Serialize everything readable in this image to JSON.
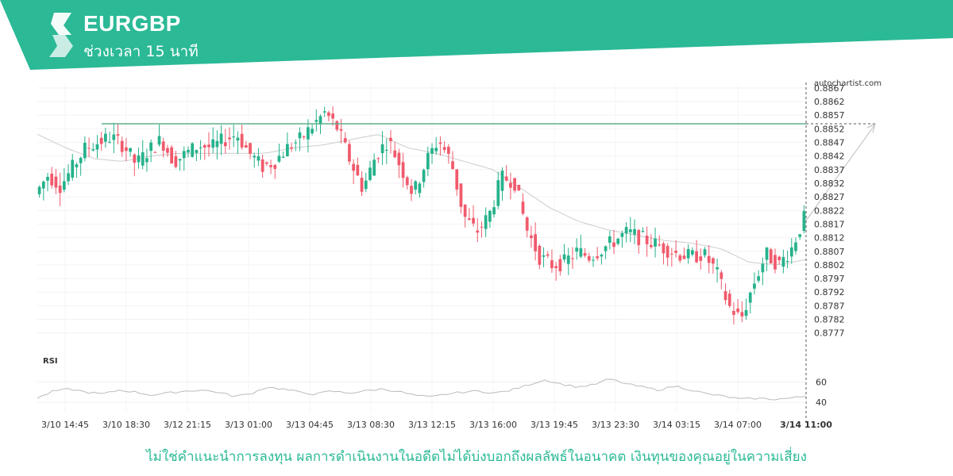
{
  "header": {
    "pair": "EURGBP",
    "timeframe": "ช่วงเวลา 15 นาที"
  },
  "watermark": "autochartist.com",
  "disclaimer": "ไม่ใช่คำแนะนำการลงทุน ผลการดำเนินงานในอดีตไม่ได้บ่งบอกถึงผลลัพธ์ในอนาคต เงินทุนของคุณอยู่ในความเสี่ยง",
  "colors": {
    "brand": "#2bb996",
    "up": "#26b28c",
    "down": "#f05a6c",
    "level": "#5fae8c",
    "ma": "#cccccc"
  },
  "chart_data": {
    "type": "candlestick",
    "symbol": "EURGBP",
    "ylim": [
      0.8774,
      0.8869
    ],
    "y_ticks": [
      0.8867,
      0.8862,
      0.8857,
      0.8852,
      0.8847,
      0.8842,
      0.8837,
      0.8832,
      0.8827,
      0.8822,
      0.8817,
      0.8812,
      0.8807,
      0.8802,
      0.8797,
      0.8792,
      0.8787,
      0.8782,
      0.8777
    ],
    "x_ticks": [
      "3/10 14:45",
      "3/10 18:30",
      "3/12 21:15",
      "3/13 01:00",
      "3/13 04:45",
      "3/13 08:30",
      "3/13 12:15",
      "3/13 16:00",
      "3/13 19:45",
      "3/13 23:30",
      "3/14 03:15",
      "3/14 07:00",
      "3/14 11:00"
    ],
    "current_time": "3/14 11:00",
    "resistance_level": 0.8852,
    "projection": {
      "from": 0.8819,
      "to": 0.8852
    },
    "price_anchors": [
      0.8828,
      0.8835,
      0.8831,
      0.8838,
      0.8845,
      0.8847,
      0.8849,
      0.8846,
      0.8839,
      0.8844,
      0.8848,
      0.884,
      0.8843,
      0.8846,
      0.8845,
      0.8848,
      0.885,
      0.8843,
      0.8838,
      0.884,
      0.8845,
      0.8848,
      0.8853,
      0.8858,
      0.8852,
      0.884,
      0.883,
      0.8842,
      0.8848,
      0.8838,
      0.8828,
      0.884,
      0.8848,
      0.884,
      0.882,
      0.8814,
      0.882,
      0.8834,
      0.8833,
      0.8815,
      0.8805,
      0.8802,
      0.8803,
      0.8807,
      0.8805,
      0.8808,
      0.8811,
      0.8814,
      0.8812,
      0.881,
      0.8808,
      0.8806,
      0.8805,
      0.8806,
      0.88,
      0.8787,
      0.8782,
      0.8795,
      0.8806,
      0.8802,
      0.8808,
      0.8819
    ],
    "ma_anchors": [
      0.885,
      0.8845,
      0.8841,
      0.884,
      0.8842,
      0.8843,
      0.8843,
      0.8843,
      0.8843,
      0.8845,
      0.8846,
      0.8848,
      0.885,
      0.8845,
      0.8843,
      0.884,
      0.8837,
      0.883,
      0.8823,
      0.8818,
      0.8815,
      0.8813,
      0.8811,
      0.881,
      0.8808,
      0.8803,
      0.8802,
      0.8804
    ],
    "rsi": {
      "label": "RSI",
      "ylim": [
        30,
        75
      ],
      "ticks": [
        60,
        40
      ],
      "anchors": [
        44,
        51,
        53,
        50,
        48,
        52,
        50,
        47,
        49,
        51,
        52,
        50,
        46,
        48,
        55,
        53,
        50,
        48,
        51,
        49,
        51,
        53,
        51,
        47,
        45,
        48,
        50,
        51,
        49,
        52,
        57,
        62,
        58,
        55,
        57,
        63,
        58,
        55,
        52,
        56,
        52,
        48,
        46,
        43,
        44,
        43,
        44,
        46
      ]
    }
  }
}
